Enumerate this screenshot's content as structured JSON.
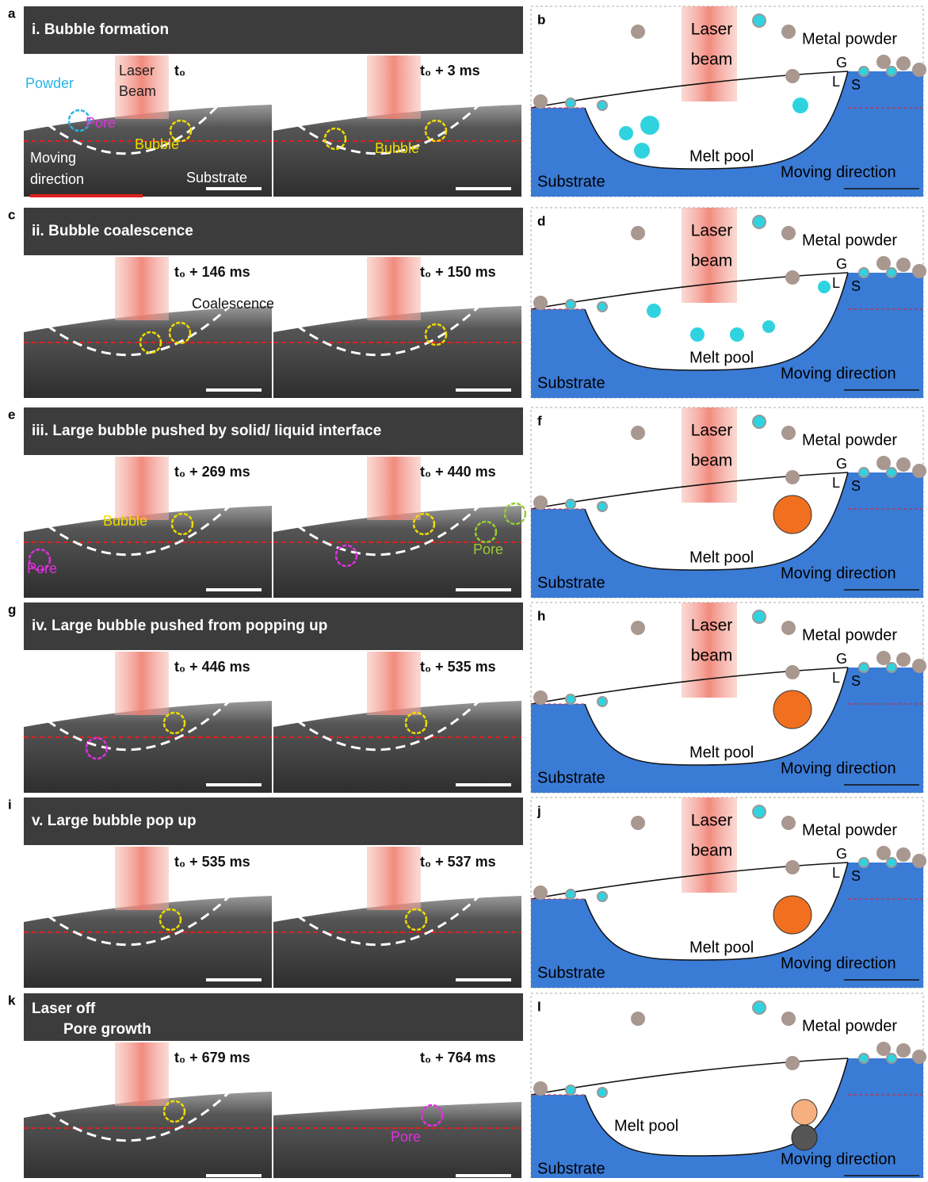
{
  "rows": [
    {
      "letter": "a",
      "title": [
        "i. Bubble formation"
      ],
      "frames": [
        {
          "time": "t₀",
          "annotations": [
            {
              "text": "Laser",
              "color": "#222222"
            },
            {
              "text": "Beam",
              "color": "#222222"
            },
            {
              "text": "Powder",
              "color": "#2ab4e6"
            },
            {
              "text": "Pore",
              "color": "#e030e0"
            },
            {
              "text": "Bubble",
              "color": "#f0dc00"
            },
            {
              "text": "Moving",
              "color": "#ffffff"
            },
            {
              "text": "direction",
              "color": "#ffffff"
            },
            {
              "text": "Substrate",
              "color": "#ffffff"
            }
          ]
        },
        {
          "time": "t₀ + 3 ms",
          "annotations": [
            {
              "text": "Bubble",
              "color": "#f0dc00"
            }
          ]
        }
      ],
      "right": {
        "letter": "b",
        "laser": [
          "Laser",
          "beam"
        ],
        "powder": "Metal powder",
        "g": "G",
        "l": "L",
        "s": "S",
        "melt_pool": "Melt pool",
        "substrate": "Substrate",
        "direction": "Moving direction"
      }
    },
    {
      "letter": "c",
      "title": [
        "ii. Bubble coalescence"
      ],
      "frames": [
        {
          "time": "t₀ + 146 ms",
          "annotations": [
            {
              "text": "Coalescence",
              "color": "#111111"
            }
          ]
        },
        {
          "time": "t₀ + 150 ms",
          "annotations": []
        }
      ],
      "right": {
        "letter": "d",
        "laser": [
          "Laser",
          "beam"
        ],
        "powder": "Metal powder",
        "g": "G",
        "l": "L",
        "s": "S",
        "melt_pool": "Melt pool",
        "substrate": "Substrate",
        "direction": "Moving direction"
      }
    },
    {
      "letter": "e",
      "title": [
        "iii. Large bubble pushed by solid/ liquid interface"
      ],
      "frames": [
        {
          "time": "t₀ + 269 ms",
          "annotations": [
            {
              "text": "Bubble",
              "color": "#f0dc00"
            },
            {
              "text": "Pore",
              "color": "#e030e0"
            }
          ]
        },
        {
          "time": "t₀ + 440 ms",
          "annotations": [
            {
              "text": "Pore",
              "color": "#99cc33"
            }
          ]
        }
      ],
      "right": {
        "letter": "f",
        "laser": [
          "Laser",
          "beam"
        ],
        "powder": "Metal powder",
        "g": "G",
        "l": "L",
        "s": "S",
        "melt_pool": "Melt pool",
        "substrate": "Substrate",
        "direction": "Moving direction"
      }
    },
    {
      "letter": "g",
      "title": [
        "iv. Large bubble pushed from popping up"
      ],
      "frames": [
        {
          "time": "t₀ + 446 ms",
          "annotations": []
        },
        {
          "time": "t₀ + 535 ms",
          "annotations": []
        }
      ],
      "right": {
        "letter": "h",
        "laser": [
          "Laser",
          "beam"
        ],
        "powder": "Metal powder",
        "g": "G",
        "l": "L",
        "s": "S",
        "melt_pool": "Melt pool",
        "substrate": "Substrate",
        "direction": "Moving direction"
      }
    },
    {
      "letter": "i",
      "title": [
        "v. Large bubble pop up"
      ],
      "frames": [
        {
          "time": "t₀ + 535 ms",
          "annotations": []
        },
        {
          "time": "t₀ + 537 ms",
          "annotations": []
        }
      ],
      "right": {
        "letter": "j",
        "laser": [
          "Laser",
          "beam"
        ],
        "powder": "Metal powder",
        "g": "G",
        "l": "L",
        "s": "S",
        "melt_pool": "Melt pool",
        "substrate": "Substrate",
        "direction": "Moving direction"
      }
    },
    {
      "letter": "k",
      "title": [
        "Laser off",
        "Pore growth"
      ],
      "frames": [
        {
          "time": "t₀ + 679 ms",
          "annotations": []
        },
        {
          "time": "t₀ + 764 ms",
          "annotations": [
            {
              "text": "Pore",
              "color": "#e030e0"
            }
          ]
        }
      ],
      "right": {
        "letter": "l",
        "powder": "Metal powder",
        "melt_pool": "Melt pool",
        "substrate": "Substrate",
        "direction": "Moving direction"
      }
    }
  ]
}
